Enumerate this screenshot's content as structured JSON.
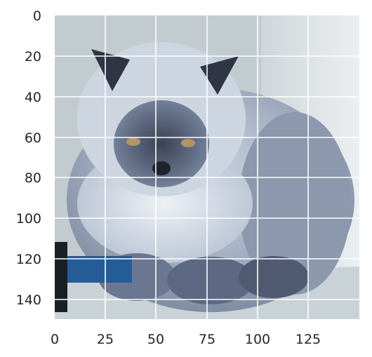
{
  "image_view": {
    "subject": "fluffy blue-grey Persian cat, front view, lying down",
    "x_ticks": [
      "0",
      "25",
      "50",
      "75",
      "100",
      "125"
    ],
    "y_ticks": [
      "0",
      "20",
      "40",
      "60",
      "80",
      "100",
      "120",
      "140"
    ],
    "grid": true,
    "grid_color": "#ffffff",
    "colors": {
      "background": "#c2ccd0",
      "fur_light": "#e9edf3",
      "fur_mid": "#8f9db2",
      "fur_dark": "#3d4556",
      "wall_right": "#e1e5e8",
      "eye": "#b5936a",
      "blue_object": "#245c97"
    }
  }
}
